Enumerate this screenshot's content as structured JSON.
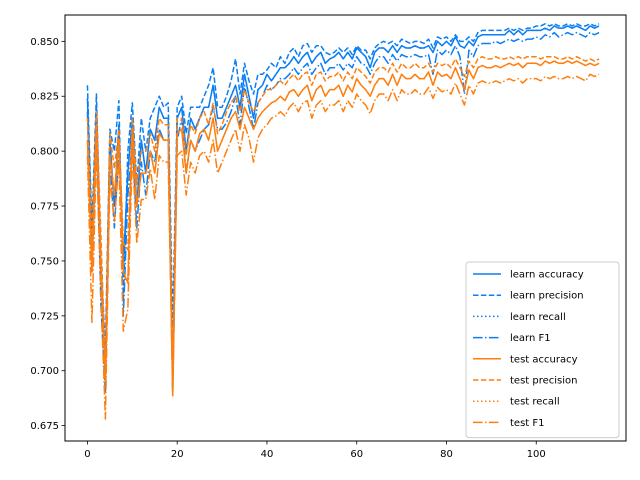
{
  "chart_data": {
    "type": "line",
    "title": "",
    "xlabel": "",
    "ylabel": "",
    "xlim": [
      -5,
      120
    ],
    "ylim": [
      0.668,
      0.862
    ],
    "x_ticks": [
      0,
      20,
      40,
      60,
      80,
      100
    ],
    "x_tick_labels": [
      "0",
      "20",
      "40",
      "60",
      "80",
      "100"
    ],
    "y_ticks": [
      0.675,
      0.7,
      0.725,
      0.75,
      0.775,
      0.8,
      0.825,
      0.85
    ],
    "y_tick_labels": [
      "0.675",
      "0.700",
      "0.725",
      "0.750",
      "0.775",
      "0.800",
      "0.825",
      "0.850"
    ],
    "grid": false,
    "legend_position": "lower-right",
    "x": [
      0,
      1,
      2,
      3,
      4,
      5,
      6,
      7,
      8,
      9,
      10,
      11,
      12,
      13,
      14,
      15,
      16,
      17,
      18,
      19,
      20,
      21,
      22,
      23,
      24,
      25,
      26,
      27,
      28,
      29,
      30,
      31,
      32,
      33,
      34,
      35,
      36,
      37,
      38,
      39,
      40,
      41,
      42,
      43,
      44,
      45,
      46,
      47,
      48,
      49,
      50,
      51,
      52,
      53,
      54,
      55,
      56,
      57,
      58,
      59,
      60,
      61,
      62,
      63,
      64,
      65,
      66,
      67,
      68,
      69,
      70,
      71,
      72,
      73,
      74,
      75,
      76,
      77,
      78,
      79,
      80,
      81,
      82,
      83,
      84,
      85,
      86,
      87,
      88,
      89,
      90,
      91,
      92,
      93,
      94,
      95,
      96,
      97,
      98,
      99,
      100,
      101,
      102,
      103,
      104,
      105,
      106,
      107,
      108,
      109,
      110,
      111,
      112,
      113,
      114
    ],
    "series": [
      {
        "name": "learn accuracy",
        "color": "#0a7ef4",
        "dash": "solid",
        "values": [
          0.824,
          0.76,
          0.82,
          0.745,
          0.7,
          0.805,
          0.775,
          0.812,
          0.748,
          0.79,
          0.815,
          0.775,
          0.805,
          0.79,
          0.81,
          0.805,
          0.82,
          0.815,
          0.815,
          0.695,
          0.815,
          0.82,
          0.8,
          0.815,
          0.81,
          0.815,
          0.82,
          0.82,
          0.83,
          0.815,
          0.815,
          0.82,
          0.825,
          0.83,
          0.82,
          0.835,
          0.825,
          0.815,
          0.828,
          0.83,
          0.835,
          0.832,
          0.835,
          0.838,
          0.838,
          0.84,
          0.843,
          0.84,
          0.843,
          0.845,
          0.84,
          0.843,
          0.845,
          0.84,
          0.842,
          0.843,
          0.845,
          0.842,
          0.845,
          0.842,
          0.847,
          0.845,
          0.843,
          0.838,
          0.845,
          0.847,
          0.847,
          0.845,
          0.848,
          0.845,
          0.848,
          0.847,
          0.847,
          0.848,
          0.847,
          0.847,
          0.848,
          0.845,
          0.85,
          0.848,
          0.85,
          0.848,
          0.852,
          0.848,
          0.847,
          0.85,
          0.848,
          0.852,
          0.853,
          0.853,
          0.853,
          0.853,
          0.853,
          0.853,
          0.855,
          0.853,
          0.855,
          0.853,
          0.855,
          0.855,
          0.855,
          0.855,
          0.856,
          0.855,
          0.857,
          0.856,
          0.856,
          0.857,
          0.856,
          0.857,
          0.856,
          0.855,
          0.857,
          0.856,
          0.857
        ]
      },
      {
        "name": "learn precision",
        "color": "#0a7ef4",
        "dash": "dashed",
        "values": [
          0.83,
          0.765,
          0.826,
          0.75,
          0.71,
          0.81,
          0.8,
          0.823,
          0.733,
          0.8,
          0.822,
          0.785,
          0.815,
          0.8,
          0.815,
          0.82,
          0.825,
          0.82,
          0.822,
          0.72,
          0.82,
          0.825,
          0.808,
          0.82,
          0.82,
          0.82,
          0.825,
          0.83,
          0.838,
          0.82,
          0.82,
          0.825,
          0.832,
          0.842,
          0.826,
          0.84,
          0.832,
          0.826,
          0.835,
          0.835,
          0.837,
          0.84,
          0.838,
          0.843,
          0.84,
          0.845,
          0.847,
          0.843,
          0.848,
          0.849,
          0.845,
          0.848,
          0.848,
          0.845,
          0.844,
          0.845,
          0.847,
          0.845,
          0.847,
          0.844,
          0.848,
          0.846,
          0.846,
          0.842,
          0.847,
          0.849,
          0.85,
          0.849,
          0.85,
          0.848,
          0.851,
          0.85,
          0.849,
          0.85,
          0.85,
          0.849,
          0.851,
          0.847,
          0.852,
          0.851,
          0.852,
          0.85,
          0.853,
          0.85,
          0.85,
          0.852,
          0.85,
          0.854,
          0.855,
          0.855,
          0.855,
          0.855,
          0.855,
          0.855,
          0.856,
          0.855,
          0.856,
          0.855,
          0.856,
          0.856,
          0.857,
          0.857,
          0.858,
          0.857,
          0.858,
          0.857,
          0.857,
          0.858,
          0.857,
          0.858,
          0.857,
          0.857,
          0.858,
          0.857,
          0.858
        ]
      },
      {
        "name": "learn recall",
        "color": "#0a7ef4",
        "dash": "dotted",
        "values": [
          0.824,
          0.76,
          0.82,
          0.745,
          0.7,
          0.805,
          0.775,
          0.812,
          0.748,
          0.79,
          0.815,
          0.775,
          0.805,
          0.79,
          0.81,
          0.805,
          0.82,
          0.815,
          0.815,
          0.695,
          0.815,
          0.82,
          0.8,
          0.815,
          0.81,
          0.815,
          0.82,
          0.82,
          0.83,
          0.815,
          0.815,
          0.82,
          0.825,
          0.83,
          0.82,
          0.835,
          0.825,
          0.815,
          0.828,
          0.83,
          0.835,
          0.832,
          0.835,
          0.838,
          0.838,
          0.84,
          0.843,
          0.84,
          0.843,
          0.845,
          0.84,
          0.843,
          0.845,
          0.84,
          0.842,
          0.843,
          0.845,
          0.842,
          0.845,
          0.842,
          0.847,
          0.845,
          0.843,
          0.838,
          0.845,
          0.847,
          0.847,
          0.845,
          0.848,
          0.845,
          0.848,
          0.847,
          0.847,
          0.848,
          0.847,
          0.847,
          0.848,
          0.845,
          0.85,
          0.848,
          0.85,
          0.848,
          0.852,
          0.848,
          0.847,
          0.85,
          0.848,
          0.852,
          0.853,
          0.853,
          0.853,
          0.853,
          0.853,
          0.853,
          0.855,
          0.853,
          0.855,
          0.853,
          0.855,
          0.855,
          0.855,
          0.855,
          0.856,
          0.855,
          0.857,
          0.856,
          0.856,
          0.857,
          0.856,
          0.857,
          0.856,
          0.855,
          0.857,
          0.856,
          0.857
        ]
      },
      {
        "name": "learn F1",
        "color": "#0a7ef4",
        "dash": "dashdot",
        "values": [
          0.818,
          0.745,
          0.81,
          0.73,
          0.69,
          0.795,
          0.765,
          0.8,
          0.725,
          0.78,
          0.805,
          0.765,
          0.795,
          0.78,
          0.8,
          0.795,
          0.81,
          0.805,
          0.805,
          0.69,
          0.805,
          0.815,
          0.79,
          0.805,
          0.8,
          0.805,
          0.81,
          0.812,
          0.82,
          0.81,
          0.81,
          0.813,
          0.818,
          0.825,
          0.812,
          0.83,
          0.82,
          0.81,
          0.822,
          0.825,
          0.83,
          0.828,
          0.83,
          0.833,
          0.833,
          0.835,
          0.838,
          0.835,
          0.838,
          0.84,
          0.835,
          0.838,
          0.84,
          0.835,
          0.838,
          0.838,
          0.84,
          0.837,
          0.84,
          0.838,
          0.843,
          0.84,
          0.839,
          0.835,
          0.84,
          0.843,
          0.843,
          0.84,
          0.844,
          0.841,
          0.844,
          0.843,
          0.843,
          0.844,
          0.843,
          0.843,
          0.844,
          0.835,
          0.846,
          0.844,
          0.846,
          0.844,
          0.848,
          0.843,
          0.826,
          0.846,
          0.843,
          0.848,
          0.849,
          0.849,
          0.849,
          0.85,
          0.849,
          0.85,
          0.851,
          0.85,
          0.851,
          0.85,
          0.851,
          0.851,
          0.852,
          0.851,
          0.853,
          0.852,
          0.854,
          0.852,
          0.853,
          0.854,
          0.853,
          0.854,
          0.853,
          0.852,
          0.854,
          0.853,
          0.854
        ]
      },
      {
        "name": "test accuracy",
        "color": "#ff7f0e",
        "dash": "solid",
        "values": [
          0.805,
          0.745,
          0.812,
          0.75,
          0.695,
          0.798,
          0.78,
          0.805,
          0.745,
          0.74,
          0.81,
          0.775,
          0.79,
          0.79,
          0.8,
          0.79,
          0.808,
          0.805,
          0.805,
          0.69,
          0.808,
          0.81,
          0.79,
          0.805,
          0.8,
          0.808,
          0.81,
          0.805,
          0.815,
          0.8,
          0.805,
          0.81,
          0.815,
          0.818,
          0.81,
          0.82,
          0.815,
          0.81,
          0.815,
          0.818,
          0.82,
          0.822,
          0.823,
          0.825,
          0.823,
          0.827,
          0.828,
          0.825,
          0.828,
          0.83,
          0.823,
          0.828,
          0.83,
          0.825,
          0.828,
          0.828,
          0.83,
          0.825,
          0.83,
          0.827,
          0.833,
          0.83,
          0.828,
          0.825,
          0.83,
          0.833,
          0.833,
          0.83,
          0.835,
          0.83,
          0.835,
          0.833,
          0.833,
          0.835,
          0.833,
          0.833,
          0.836,
          0.83,
          0.836,
          0.834,
          0.835,
          0.833,
          0.838,
          0.833,
          0.828,
          0.837,
          0.833,
          0.838,
          0.839,
          0.838,
          0.838,
          0.839,
          0.838,
          0.839,
          0.84,
          0.839,
          0.84,
          0.838,
          0.84,
          0.84,
          0.84,
          0.839,
          0.841,
          0.84,
          0.841,
          0.84,
          0.84,
          0.841,
          0.84,
          0.841,
          0.84,
          0.839,
          0.84,
          0.839,
          0.84
        ]
      },
      {
        "name": "test precision",
        "color": "#ff7f0e",
        "dash": "dashed",
        "values": [
          0.815,
          0.76,
          0.818,
          0.762,
          0.7,
          0.808,
          0.792,
          0.81,
          0.758,
          0.755,
          0.815,
          0.785,
          0.8,
          0.8,
          0.808,
          0.8,
          0.815,
          0.812,
          0.812,
          0.7,
          0.815,
          0.815,
          0.798,
          0.812,
          0.808,
          0.815,
          0.818,
          0.812,
          0.822,
          0.808,
          0.812,
          0.818,
          0.822,
          0.825,
          0.818,
          0.828,
          0.822,
          0.818,
          0.822,
          0.825,
          0.828,
          0.828,
          0.83,
          0.832,
          0.83,
          0.833,
          0.835,
          0.832,
          0.835,
          0.836,
          0.83,
          0.835,
          0.836,
          0.832,
          0.834,
          0.834,
          0.836,
          0.832,
          0.836,
          0.833,
          0.838,
          0.836,
          0.834,
          0.831,
          0.836,
          0.838,
          0.838,
          0.836,
          0.84,
          0.836,
          0.84,
          0.838,
          0.838,
          0.84,
          0.838,
          0.838,
          0.84,
          0.836,
          0.84,
          0.839,
          0.84,
          0.838,
          0.842,
          0.838,
          0.834,
          0.841,
          0.838,
          0.842,
          0.843,
          0.842,
          0.842,
          0.843,
          0.842,
          0.842,
          0.843,
          0.842,
          0.843,
          0.842,
          0.843,
          0.843,
          0.843,
          0.842,
          0.843,
          0.843,
          0.843,
          0.842,
          0.842,
          0.843,
          0.842,
          0.843,
          0.842,
          0.841,
          0.842,
          0.841,
          0.842
        ]
      },
      {
        "name": "test recall",
        "color": "#ff7f0e",
        "dash": "dotted",
        "values": [
          0.805,
          0.745,
          0.812,
          0.75,
          0.695,
          0.798,
          0.78,
          0.805,
          0.745,
          0.74,
          0.81,
          0.775,
          0.79,
          0.79,
          0.8,
          0.79,
          0.808,
          0.805,
          0.805,
          0.69,
          0.808,
          0.81,
          0.79,
          0.805,
          0.8,
          0.808,
          0.81,
          0.805,
          0.815,
          0.8,
          0.805,
          0.81,
          0.815,
          0.818,
          0.81,
          0.82,
          0.815,
          0.81,
          0.815,
          0.818,
          0.82,
          0.822,
          0.823,
          0.825,
          0.823,
          0.827,
          0.828,
          0.825,
          0.828,
          0.83,
          0.823,
          0.828,
          0.83,
          0.825,
          0.828,
          0.828,
          0.83,
          0.825,
          0.83,
          0.827,
          0.833,
          0.83,
          0.828,
          0.825,
          0.83,
          0.833,
          0.833,
          0.83,
          0.835,
          0.83,
          0.835,
          0.833,
          0.833,
          0.835,
          0.833,
          0.833,
          0.836,
          0.83,
          0.836,
          0.834,
          0.835,
          0.833,
          0.838,
          0.833,
          0.828,
          0.837,
          0.833,
          0.838,
          0.839,
          0.838,
          0.838,
          0.839,
          0.838,
          0.839,
          0.84,
          0.839,
          0.84,
          0.838,
          0.84,
          0.84,
          0.84,
          0.839,
          0.841,
          0.84,
          0.841,
          0.84,
          0.84,
          0.841,
          0.84,
          0.841,
          0.84,
          0.839,
          0.84,
          0.839,
          0.84
        ]
      },
      {
        "name": "test F1",
        "color": "#ff7f0e",
        "dash": "dashdot",
        "values": [
          0.798,
          0.722,
          0.8,
          0.735,
          0.678,
          0.788,
          0.768,
          0.795,
          0.718,
          0.728,
          0.8,
          0.758,
          0.778,
          0.778,
          0.792,
          0.778,
          0.798,
          0.795,
          0.795,
          0.688,
          0.798,
          0.8,
          0.78,
          0.795,
          0.79,
          0.798,
          0.8,
          0.795,
          0.805,
          0.79,
          0.795,
          0.8,
          0.805,
          0.81,
          0.8,
          0.812,
          0.806,
          0.795,
          0.806,
          0.81,
          0.812,
          0.815,
          0.816,
          0.818,
          0.816,
          0.82,
          0.822,
          0.818,
          0.822,
          0.823,
          0.815,
          0.821,
          0.823,
          0.818,
          0.821,
          0.821,
          0.823,
          0.818,
          0.823,
          0.82,
          0.826,
          0.823,
          0.821,
          0.817,
          0.823,
          0.826,
          0.826,
          0.823,
          0.828,
          0.823,
          0.828,
          0.826,
          0.826,
          0.828,
          0.826,
          0.826,
          0.829,
          0.824,
          0.829,
          0.827,
          0.828,
          0.826,
          0.831,
          0.826,
          0.821,
          0.83,
          0.826,
          0.831,
          0.832,
          0.831,
          0.831,
          0.832,
          0.831,
          0.832,
          0.833,
          0.832,
          0.833,
          0.831,
          0.833,
          0.833,
          0.833,
          0.832,
          0.834,
          0.833,
          0.834,
          0.833,
          0.833,
          0.834,
          0.833,
          0.834,
          0.833,
          0.832,
          0.835,
          0.834,
          0.835
        ]
      }
    ]
  }
}
